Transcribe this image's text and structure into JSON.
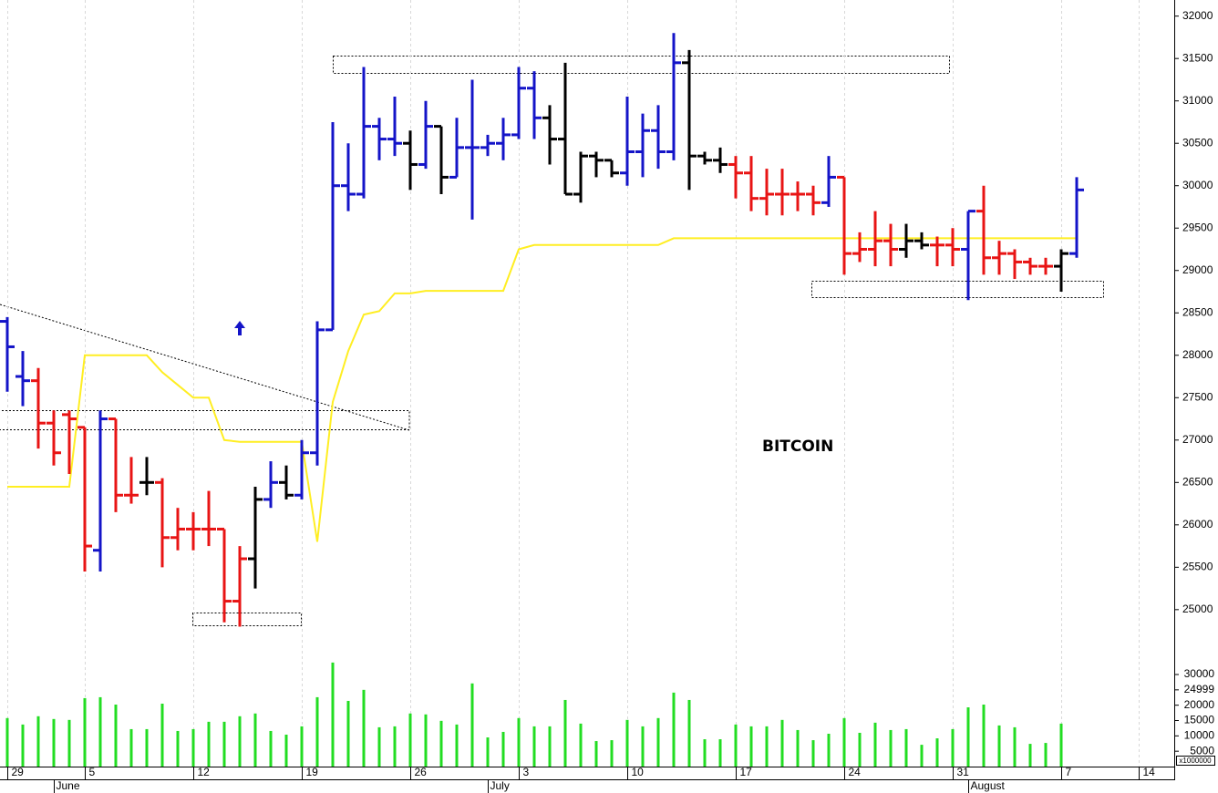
{
  "chart_data": [
    {
      "type": "ohlc",
      "annotation": "BITCOIN",
      "categories": [
        "29",
        null,
        null,
        null,
        null,
        "5",
        null,
        null,
        null,
        null,
        null,
        null,
        "12",
        null,
        null,
        null,
        null,
        null,
        null,
        "19",
        null,
        null,
        null,
        null,
        null,
        null,
        "26",
        null,
        null,
        null,
        null,
        null,
        null,
        "3",
        null,
        null,
        null,
        null,
        null,
        null,
        "10",
        null,
        null,
        null,
        null,
        null,
        null,
        "17",
        null,
        null,
        null,
        null,
        null,
        null,
        "24",
        null,
        null,
        null,
        null,
        null,
        null,
        "31",
        null,
        null,
        null,
        null,
        null,
        null,
        "7",
        null,
        null,
        null,
        null,
        "14"
      ],
      "month_categories": [
        null,
        null,
        null,
        "June",
        null,
        null,
        null,
        null,
        null,
        null,
        null,
        null,
        null,
        null,
        null,
        null,
        null,
        null,
        null,
        null,
        null,
        null,
        null,
        null,
        null,
        null,
        null,
        null,
        null,
        null,
        null,
        "July",
        null,
        null,
        null,
        null,
        null,
        null,
        null,
        null,
        null,
        null,
        null,
        null,
        null,
        null,
        null,
        null,
        null,
        null,
        null,
        null,
        null,
        null,
        null,
        null,
        null,
        null,
        null,
        null,
        null,
        null,
        "August",
        null,
        null,
        null,
        null,
        null,
        null,
        null,
        null,
        null,
        null,
        null
      ],
      "open": [
        28400,
        27750,
        27700,
        27200,
        27300,
        27150,
        25700,
        27250,
        26350,
        26500,
        26500,
        25850,
        25950,
        25950,
        25950,
        25100,
        25600,
        26300,
        26500,
        26350,
        26850,
        28300,
        30000,
        29900,
        30700,
        30550,
        30500,
        30250,
        30700,
        30100,
        30450,
        30450,
        30500,
        30600,
        31150,
        30800,
        30550,
        29900,
        30350,
        30300,
        30150,
        30400,
        30650,
        30400,
        31450,
        30350,
        30300,
        30250,
        30150,
        29850,
        29900,
        29900,
        29900,
        29800,
        30100,
        29200,
        29250,
        29350,
        29250,
        29350,
        29300,
        29300,
        29250,
        29700,
        29150,
        29200,
        29100,
        29050,
        29050,
        29200,
        null,
        null,
        null,
        null
      ],
      "high": [
        28450,
        28050,
        27850,
        27350,
        27350,
        27150,
        27350,
        27250,
        26800,
        26800,
        26550,
        26200,
        26150,
        26400,
        25950,
        25750,
        26450,
        26750,
        26700,
        27000,
        28400,
        30750,
        30500,
        31400,
        30800,
        31050,
        30650,
        31000,
        30700,
        30800,
        31250,
        30600,
        30800,
        31400,
        31350,
        30950,
        31450,
        30400,
        30400,
        30300,
        31050,
        30850,
        30950,
        31800,
        31600,
        30400,
        30450,
        30350,
        30350,
        30200,
        30200,
        30050,
        30000,
        30350,
        30100,
        29450,
        29700,
        29550,
        29550,
        29450,
        29400,
        29500,
        29700,
        30000,
        29350,
        29250,
        29150,
        29150,
        29250,
        30100,
        null,
        null,
        null,
        null
      ],
      "low": [
        27570,
        27400,
        26900,
        26700,
        26600,
        25450,
        25450,
        26150,
        26250,
        26350,
        25500,
        25700,
        25700,
        25750,
        24850,
        24800,
        25250,
        26200,
        26300,
        26300,
        26700,
        28300,
        29700,
        29850,
        30300,
        30350,
        29950,
        30200,
        29900,
        30100,
        29600,
        30350,
        30300,
        30550,
        30550,
        30250,
        29900,
        29800,
        30100,
        30100,
        30000,
        30100,
        30200,
        30300,
        29950,
        30250,
        30150,
        29850,
        29700,
        29650,
        29650,
        29700,
        29650,
        29750,
        28950,
        29100,
        29050,
        29050,
        29150,
        29250,
        29050,
        29050,
        28650,
        28950,
        28950,
        28900,
        28950,
        28950,
        28750,
        29150,
        null,
        null,
        null,
        null
      ],
      "close": [
        28100,
        27700,
        27200,
        26850,
        27250,
        25750,
        27250,
        26350,
        26350,
        26500,
        25850,
        25950,
        25950,
        25950,
        25100,
        25600,
        26300,
        26500,
        26350,
        26850,
        28300,
        30000,
        29900,
        30700,
        30550,
        30500,
        30250,
        30700,
        30100,
        30450,
        30450,
        30500,
        30600,
        31150,
        30800,
        30550,
        29900,
        30350,
        30300,
        30150,
        30400,
        30650,
        30400,
        31450,
        30350,
        30300,
        30250,
        30150,
        29850,
        29900,
        29900,
        29900,
        29800,
        30100,
        29200,
        29250,
        29350,
        29250,
        29350,
        29300,
        29300,
        29250,
        29700,
        29150,
        29200,
        29100,
        29050,
        29050,
        29200,
        29950,
        null,
        null,
        null,
        null
      ],
      "colors": [
        "#1414c8",
        "#1414c8",
        "#e81414",
        "#e81414",
        "#e81414",
        "#e81414",
        "#1414c8",
        "#e81414",
        "#e81414",
        "#000000",
        "#e81414",
        "#e81414",
        "#e81414",
        "#e81414",
        "#e81414",
        "#e81414",
        "#000000",
        "#1414c8",
        "#000000",
        "#1414c8",
        "#1414c8",
        "#1414c8",
        "#1414c8",
        "#1414c8",
        "#1414c8",
        "#1414c8",
        "#000000",
        "#1414c8",
        "#000000",
        "#1414c8",
        "#1414c8",
        "#1414c8",
        "#1414c8",
        "#1414c8",
        "#1414c8",
        "#000000",
        "#000000",
        "#000000",
        "#000000",
        "#000000",
        "#1414c8",
        "#1414c8",
        "#1414c8",
        "#1414c8",
        "#000000",
        "#000000",
        "#000000",
        "#e81414",
        "#e81414",
        "#e81414",
        "#e81414",
        "#e81414",
        "#e81414",
        "#1414c8",
        "#e81414",
        "#e81414",
        "#e81414",
        "#e81414",
        "#000000",
        "#000000",
        "#e81414",
        "#e81414",
        "#1414c8",
        "#e81414",
        "#e81414",
        "#e81414",
        "#e81414",
        "#e81414",
        "#000000",
        "#1414c8",
        null,
        null,
        null,
        null
      ],
      "line": {
        "color": "#ffee22",
        "values": [
          26450,
          26450,
          26450,
          26450,
          26450,
          28000,
          28000,
          28000,
          28000,
          28000,
          27800,
          27650,
          27500,
          27500,
          27000,
          26980,
          26980,
          26980,
          26980,
          26980,
          25800,
          27450,
          28050,
          28480,
          28520,
          28730,
          28730,
          28760,
          28760,
          28760,
          28760,
          28760,
          28760,
          29250,
          29300,
          29300,
          29300,
          29300,
          29300,
          29300,
          29300,
          29300,
          29300,
          29380,
          29380,
          29380,
          29380,
          29380,
          29380,
          29380,
          29380,
          29380,
          29380,
          29380,
          29380,
          29380,
          29380,
          29380,
          29380,
          29380,
          29380,
          29380,
          29380,
          29380,
          29380,
          29380,
          29380,
          29380,
          29380,
          29380,
          null,
          null,
          null,
          null
        ]
      },
      "ylim": [
        24450,
        32190
      ],
      "yticks": [
        25000,
        25500,
        26000,
        26500,
        27000,
        27500,
        28000,
        28500,
        29000,
        29500,
        30000,
        30500,
        31000,
        31500,
        32000
      ],
      "grid": true
    },
    {
      "type": "bar",
      "color": "#22dd22",
      "unit_label": "x1000000",
      "values": [
        15800,
        13700,
        16400,
        15500,
        15200,
        22300,
        22600,
        20200,
        12200,
        12200,
        20500,
        11600,
        12200,
        14600,
        14600,
        16400,
        17300,
        11600,
        10400,
        13100,
        22600,
        33900,
        21400,
        25000,
        12800,
        13100,
        17300,
        17000,
        14900,
        13700,
        27100,
        9500,
        11300,
        15800,
        13100,
        13100,
        21700,
        14000,
        8300,
        8600,
        15200,
        13100,
        15800,
        24100,
        21700,
        8900,
        8900,
        13700,
        13100,
        13100,
        15200,
        11900,
        8600,
        10700,
        15800,
        11000,
        14300,
        11900,
        12200,
        7100,
        9200,
        12200,
        19300,
        20200,
        13400,
        12800,
        7400,
        7700,
        14000,
        null,
        null,
        null,
        null,
        null
      ],
      "ylim": [
        0,
        35350
      ],
      "yticks": [
        5000,
        10000,
        15000,
        20000,
        24999,
        30000
      ]
    }
  ]
}
